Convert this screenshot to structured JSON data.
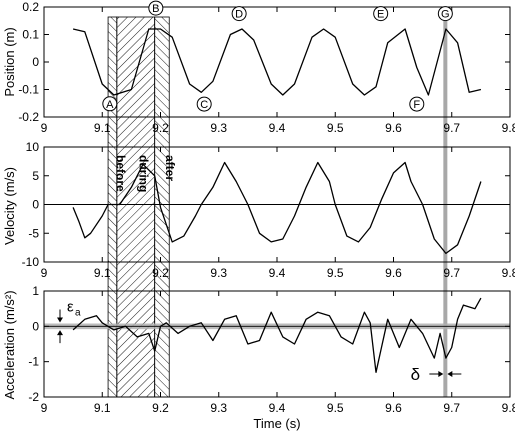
{
  "chart_data": [
    {
      "type": "line",
      "id": "position",
      "ylabel": "Position (m)",
      "xlim": [
        9.0,
        9.8
      ],
      "ylim": [
        -0.2,
        0.2
      ],
      "x_ticks": [
        "9",
        "9.1",
        "9.2",
        "9.3",
        "9.4",
        "9.5",
        "9.6",
        "9.7",
        "9.8"
      ],
      "y_ticks": [
        "0.2",
        "0.1",
        "0",
        "-0.1",
        "-0.2"
      ],
      "grid": false,
      "series": [
        {
          "x": [
            9.05,
            9.07,
            9.1,
            9.12,
            9.15,
            9.18,
            9.2,
            9.22,
            9.25,
            9.27,
            9.29,
            9.32,
            9.34,
            9.36,
            9.39,
            9.41,
            9.43,
            9.46,
            9.48,
            9.5,
            9.53,
            9.55,
            9.57,
            9.59,
            9.62,
            9.64,
            9.66,
            9.69,
            9.71,
            9.73,
            9.75
          ],
          "values": [
            0.12,
            0.11,
            -0.08,
            -0.12,
            -0.1,
            0.12,
            0.12,
            0.09,
            -0.08,
            -0.11,
            -0.07,
            0.1,
            0.12,
            0.08,
            -0.08,
            -0.12,
            -0.08,
            0.09,
            0.12,
            0.09,
            -0.08,
            -0.12,
            -0.09,
            0.07,
            0.12,
            -0.02,
            -0.12,
            0.12,
            0.07,
            -0.11,
            -0.1
          ]
        }
      ],
      "annotations": [
        {
          "label": "A",
          "x": 9.113,
          "y": -0.152
        },
        {
          "label": "B",
          "x": 9.192,
          "y": 0.196
        },
        {
          "label": "C",
          "x": 9.275,
          "y": -0.153
        },
        {
          "label": "D",
          "x": 9.335,
          "y": 0.176
        },
        {
          "label": "E",
          "x": 9.578,
          "y": 0.176
        },
        {
          "label": "F",
          "x": 9.64,
          "y": -0.153
        },
        {
          "label": "G",
          "x": 9.689,
          "y": 0.176
        }
      ]
    },
    {
      "type": "line",
      "id": "velocity",
      "ylabel": "Velocity (m/s)",
      "xlim": [
        9.0,
        9.8
      ],
      "ylim": [
        -10,
        10
      ],
      "x_ticks": [
        "9",
        "9.1",
        "9.2",
        "9.3",
        "9.4",
        "9.5",
        "9.6",
        "9.7",
        "9.8"
      ],
      "y_ticks": [
        "10",
        "5",
        "0",
        "-5",
        "-10"
      ],
      "grid": false,
      "zero_line": true,
      "series": [
        {
          "x": [
            9.05,
            9.06,
            9.07,
            9.08,
            9.1,
            9.11,
            9.13,
            9.15,
            9.17,
            9.19,
            9.2,
            9.22,
            9.24,
            9.26,
            9.27,
            9.29,
            9.31,
            9.33,
            9.35,
            9.37,
            9.39,
            9.41,
            9.43,
            9.45,
            9.47,
            9.49,
            9.5,
            9.52,
            9.54,
            9.56,
            9.58,
            9.6,
            9.62,
            9.63,
            9.65,
            9.67,
            9.69,
            9.71,
            9.73,
            9.75
          ],
          "values": [
            -0.5,
            -3,
            -5.8,
            -5,
            -2,
            0,
            0,
            3,
            7,
            5,
            -0.5,
            -6.5,
            -5.5,
            -2,
            0,
            3,
            7.3,
            4,
            0,
            -5,
            -6.5,
            -6,
            -2,
            3,
            7.3,
            4,
            0,
            -5.5,
            -6.5,
            -4,
            1,
            5.5,
            7.3,
            4,
            0,
            -6,
            -8.5,
            -7,
            -2,
            4
          ]
        }
      ],
      "region_labels": [
        "before",
        "during",
        "after"
      ]
    },
    {
      "type": "line",
      "id": "acceleration",
      "ylabel": "Acceleration (m/s²)",
      "xlabel": "Time (s)",
      "xlim": [
        9.0,
        9.8
      ],
      "ylim": [
        -2,
        1
      ],
      "x_ticks": [
        "9",
        "9.1",
        "9.2",
        "9.3",
        "9.4",
        "9.5",
        "9.6",
        "9.7",
        "9.8"
      ],
      "y_ticks": [
        "1",
        "0",
        "-1",
        "-2"
      ],
      "grid": false,
      "noise_band": [
        -0.08,
        0.08
      ],
      "series": [
        {
          "x": [
            9.05,
            9.07,
            9.09,
            9.1,
            9.12,
            9.14,
            9.16,
            9.18,
            9.19,
            9.2,
            9.21,
            9.23,
            9.25,
            9.27,
            9.29,
            9.31,
            9.33,
            9.35,
            9.37,
            9.39,
            9.41,
            9.43,
            9.45,
            9.47,
            9.49,
            9.51,
            9.53,
            9.55,
            9.56,
            9.57,
            9.59,
            9.61,
            9.63,
            9.65,
            9.67,
            9.68,
            9.69,
            9.7,
            9.71,
            9.72,
            9.74,
            9.75
          ],
          "values": [
            -0.1,
            0.2,
            0.3,
            0.1,
            -0.1,
            0,
            -0.3,
            -0.2,
            -0.7,
            0,
            0.1,
            -0.2,
            0,
            0.1,
            -0.4,
            0.2,
            0.3,
            -0.5,
            -0.4,
            0.4,
            -0.3,
            -0.5,
            0.2,
            0.4,
            0.3,
            -0.3,
            -0.5,
            0.4,
            0.1,
            -1.3,
            0.2,
            -0.6,
            0.2,
            -0.2,
            -0.9,
            -0.2,
            -0.9,
            -0.6,
            0.2,
            0.6,
            0.5,
            0.8
          ]
        }
      ],
      "annotations": [
        {
          "label": "ε",
          "subscript": "a"
        },
        {
          "label": "δ"
        }
      ]
    }
  ],
  "highlights": {
    "regions": [
      {
        "name": "before",
        "x": [
          9.11,
          9.125
        ]
      },
      {
        "name": "during",
        "x": [
          9.125,
          9.19
        ]
      },
      {
        "name": "after",
        "x": [
          9.19,
          9.215
        ]
      }
    ],
    "vertical_line_x": 9.689
  },
  "colors": {
    "line": "#000000",
    "highlight_gray": "#a8a8a8",
    "band_gray": "#b0b0b0"
  }
}
